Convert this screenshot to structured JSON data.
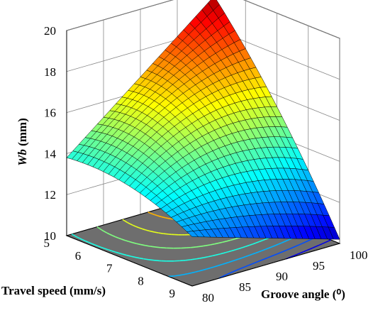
{
  "chart_data": {
    "type": "surface3d",
    "title": "",
    "x_axis": {
      "label": "Groove angle (⁰)",
      "ticks": [
        80,
        85,
        90,
        95,
        100
      ],
      "range": [
        80,
        100
      ]
    },
    "y_axis": {
      "label": "Travel speed (mm/s)",
      "ticks": [
        5,
        6,
        7,
        8,
        9
      ],
      "range": [
        5,
        9
      ]
    },
    "z_axis": {
      "label_italic": "Wb",
      "label_rest": " (mm)",
      "ticks": [
        10,
        12,
        14,
        16,
        18,
        20
      ],
      "range": [
        10,
        20
      ]
    },
    "surface_samples": [
      {
        "groove_angle": 80,
        "travel_speed": 5,
        "wb": 13.8
      },
      {
        "groove_angle": 100,
        "travel_speed": 5,
        "wb": 19.6
      },
      {
        "groove_angle": 80,
        "travel_speed": 9,
        "wb": 12.4
      },
      {
        "groove_angle": 100,
        "travel_speed": 9,
        "wb": 10.2
      },
      {
        "groove_angle": 90,
        "travel_speed": 7,
        "wb": 14.9
      }
    ],
    "contour_projection": "floor",
    "colormap": "jet",
    "grid": true
  }
}
